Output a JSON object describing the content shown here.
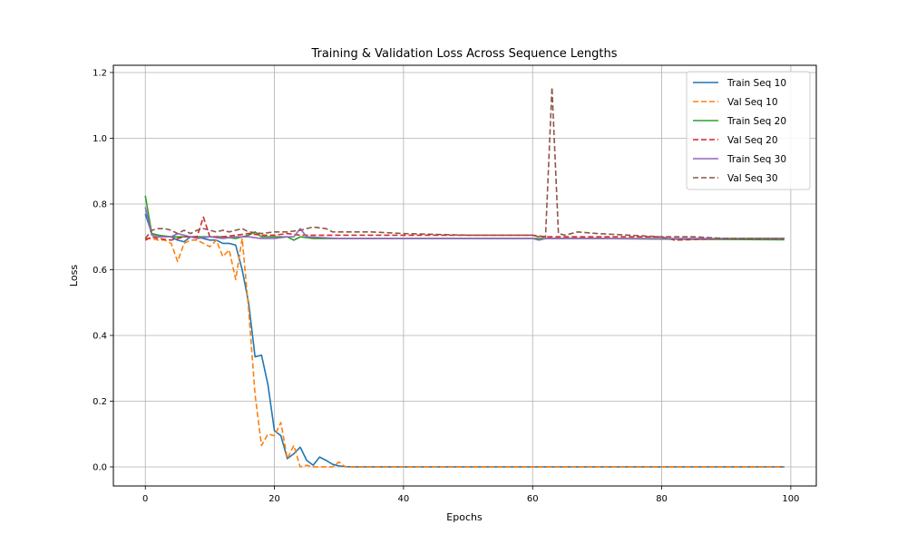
{
  "chart_data": {
    "type": "line",
    "title": "Training & Validation Loss Across Sequence Lengths",
    "xlabel": "Epochs",
    "ylabel": "Loss",
    "xlim": [
      -4.95,
      103.95
    ],
    "ylim": [
      -0.058,
      1.222
    ],
    "xticks": [
      0,
      20,
      40,
      60,
      80,
      100
    ],
    "yticks": [
      0.0,
      0.2,
      0.4,
      0.6,
      0.8,
      1.0,
      1.2
    ],
    "xtick_labels": [
      "0",
      "20",
      "40",
      "60",
      "80",
      "100"
    ],
    "ytick_labels": [
      "0.0",
      "0.2",
      "0.4",
      "0.6",
      "0.8",
      "1.0",
      "1.2"
    ],
    "grid": true,
    "legend_position": "top-right",
    "series": [
      {
        "name": "Train Seq 10",
        "color": "#1f77b4",
        "dash": "solid",
        "x": [
          0,
          1,
          2,
          3,
          4,
          5,
          6,
          7,
          8,
          9,
          10,
          11,
          12,
          13,
          14,
          15,
          16,
          17,
          18,
          19,
          20,
          21,
          22,
          23,
          24,
          25,
          26,
          27,
          28,
          29,
          30,
          31,
          32,
          35,
          40,
          50,
          60,
          70,
          80,
          90,
          99
        ],
        "y": [
          0.77,
          0.71,
          0.705,
          0.7,
          0.7,
          0.69,
          0.685,
          0.7,
          0.7,
          0.695,
          0.69,
          0.69,
          0.68,
          0.68,
          0.675,
          0.6,
          0.5,
          0.335,
          0.34,
          0.25,
          0.11,
          0.095,
          0.025,
          0.04,
          0.06,
          0.02,
          0.005,
          0.03,
          0.02,
          0.008,
          0.003,
          0.001,
          0.0,
          0.0,
          0.0,
          0.0,
          0.0,
          0.0,
          0.0,
          0.0,
          0.0
        ]
      },
      {
        "name": "Val Seq 10",
        "color": "#ff7f0e",
        "dash": "dashed",
        "x": [
          0,
          1,
          2,
          3,
          4,
          5,
          6,
          7,
          8,
          9,
          10,
          11,
          12,
          13,
          14,
          15,
          16,
          17,
          18,
          19,
          20,
          21,
          22,
          23,
          24,
          25,
          26,
          27,
          28,
          29,
          30,
          31,
          32,
          35,
          40,
          50,
          60,
          70,
          80,
          90,
          99
        ],
        "y": [
          0.695,
          0.695,
          0.69,
          0.69,
          0.68,
          0.625,
          0.68,
          0.69,
          0.69,
          0.68,
          0.67,
          0.69,
          0.64,
          0.66,
          0.57,
          0.695,
          0.48,
          0.22,
          0.065,
          0.1,
          0.095,
          0.135,
          0.025,
          0.065,
          0.0,
          0.005,
          0.0,
          0.0,
          0.0,
          0.0,
          0.015,
          0.0,
          0.0,
          0.0,
          0.0,
          0.0,
          0.0,
          0.0,
          0.0,
          0.0,
          0.0
        ]
      },
      {
        "name": "Train Seq 20",
        "color": "#2ca02c",
        "dash": "solid",
        "x": [
          0,
          1,
          2,
          4,
          6,
          8,
          10,
          12,
          14,
          16,
          17,
          18,
          20,
          22,
          23,
          24,
          26,
          30,
          40,
          50,
          60,
          70,
          80,
          90,
          99
        ],
        "y": [
          0.825,
          0.71,
          0.705,
          0.7,
          0.7,
          0.7,
          0.7,
          0.7,
          0.695,
          0.705,
          0.715,
          0.7,
          0.7,
          0.7,
          0.69,
          0.7,
          0.695,
          0.695,
          0.695,
          0.695,
          0.695,
          0.695,
          0.693,
          0.692,
          0.691
        ]
      },
      {
        "name": "Val Seq 20",
        "color": "#d62728",
        "dash": "dashed",
        "x": [
          0,
          1,
          2,
          4,
          6,
          8,
          9,
          10,
          12,
          14,
          16,
          18,
          20,
          22,
          24,
          26,
          30,
          40,
          50,
          60,
          62,
          64,
          70,
          80,
          82,
          90,
          99
        ],
        "y": [
          0.69,
          0.7,
          0.695,
          0.69,
          0.7,
          0.7,
          0.76,
          0.7,
          0.7,
          0.705,
          0.71,
          0.705,
          0.705,
          0.71,
          0.705,
          0.705,
          0.705,
          0.705,
          0.705,
          0.705,
          0.7,
          0.7,
          0.7,
          0.7,
          0.69,
          0.695,
          0.695
        ]
      },
      {
        "name": "Train Seq 30",
        "color": "#9467bd",
        "dash": "solid",
        "x": [
          0,
          1,
          2,
          4,
          5,
          6,
          8,
          10,
          12,
          14,
          16,
          18,
          20,
          22,
          23,
          24,
          25,
          30,
          40,
          50,
          60,
          61,
          62,
          70,
          80,
          90,
          99
        ],
        "y": [
          0.79,
          0.705,
          0.7,
          0.7,
          0.71,
          0.705,
          0.695,
          0.7,
          0.695,
          0.7,
          0.7,
          0.695,
          0.695,
          0.7,
          0.7,
          0.725,
          0.7,
          0.695,
          0.695,
          0.695,
          0.695,
          0.69,
          0.695,
          0.695,
          0.695,
          0.695,
          0.695
        ]
      },
      {
        "name": "Val Seq 30",
        "color": "#8c564b",
        "dash": "dashed",
        "x": [
          0,
          1,
          2,
          3,
          4,
          5,
          6,
          7,
          8,
          9,
          10,
          11,
          12,
          13,
          14,
          15,
          16,
          18,
          20,
          22,
          24,
          25,
          26,
          28,
          29,
          30,
          35,
          40,
          50,
          55,
          60,
          61,
          62,
          63,
          64,
          65,
          67,
          70,
          75,
          80,
          85,
          90,
          99
        ],
        "y": [
          0.695,
          0.72,
          0.725,
          0.725,
          0.72,
          0.71,
          0.72,
          0.71,
          0.72,
          0.725,
          0.72,
          0.715,
          0.72,
          0.715,
          0.72,
          0.725,
          0.715,
          0.71,
          0.715,
          0.715,
          0.72,
          0.725,
          0.73,
          0.725,
          0.715,
          0.715,
          0.715,
          0.71,
          0.705,
          0.705,
          0.705,
          0.7,
          0.7,
          1.155,
          0.71,
          0.705,
          0.715,
          0.71,
          0.705,
          0.7,
          0.7,
          0.695,
          0.695
        ]
      }
    ]
  }
}
